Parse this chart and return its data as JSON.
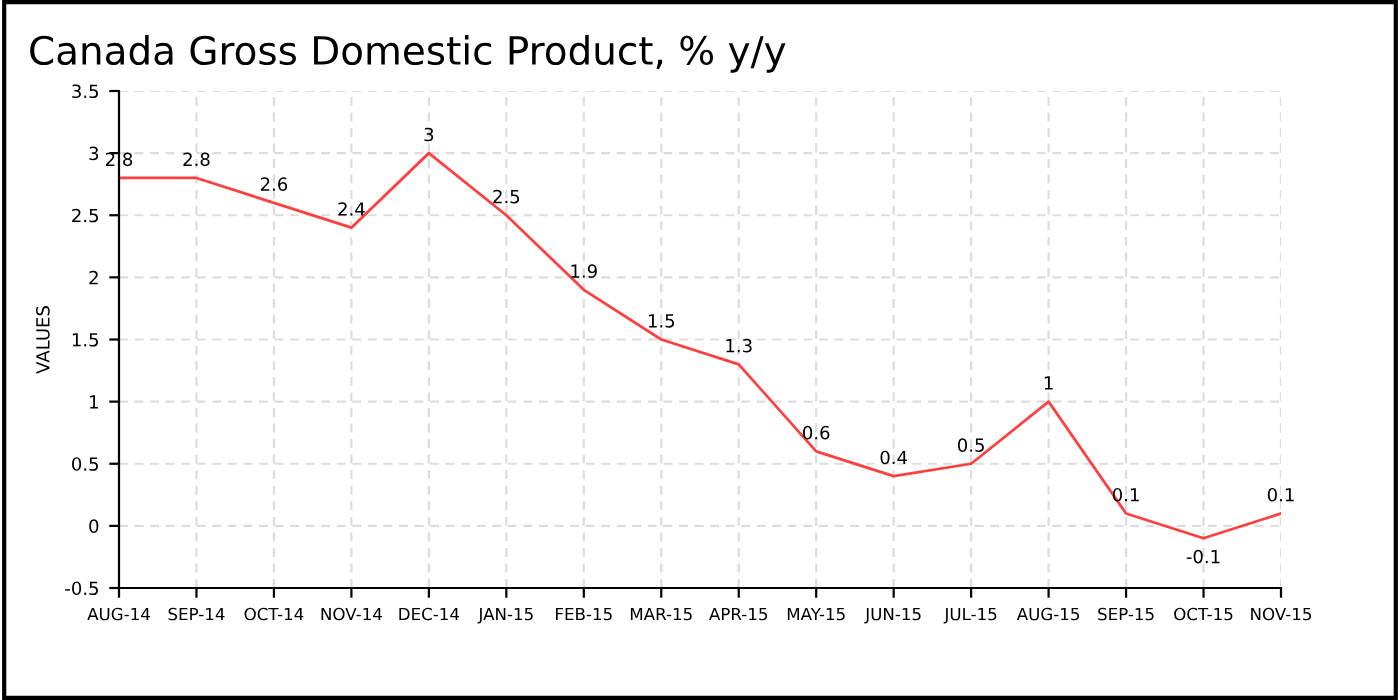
{
  "chart_data": {
    "type": "line",
    "title": "Canada Gross Domestic Product, % y/y",
    "ylabel": "VALUES",
    "categories": [
      "AUG-14",
      "SEP-14",
      "OCT-14",
      "NOV-14",
      "DEC-14",
      "JAN-15",
      "FEB-15",
      "MAR-15",
      "APR-15",
      "MAY-15",
      "JUN-15",
      "JUL-15",
      "AUG-15",
      "SEP-15",
      "OCT-15",
      "NOV-15"
    ],
    "series": [
      {
        "color": "#ff4040",
        "values": [
          2.8,
          2.8,
          2.6,
          2.4,
          3,
          2.5,
          1.9,
          1.5,
          1.3,
          0.6,
          0.4,
          0.5,
          1,
          0.1,
          -0.1,
          0.1
        ]
      }
    ],
    "ylim": [
      -0.5,
      3.5
    ],
    "yticks": [
      -0.5,
      0,
      0.5,
      1,
      1.5,
      2,
      2.5,
      3,
      3.5
    ],
    "grid": true,
    "line_style": "solid",
    "data_labels": true
  }
}
